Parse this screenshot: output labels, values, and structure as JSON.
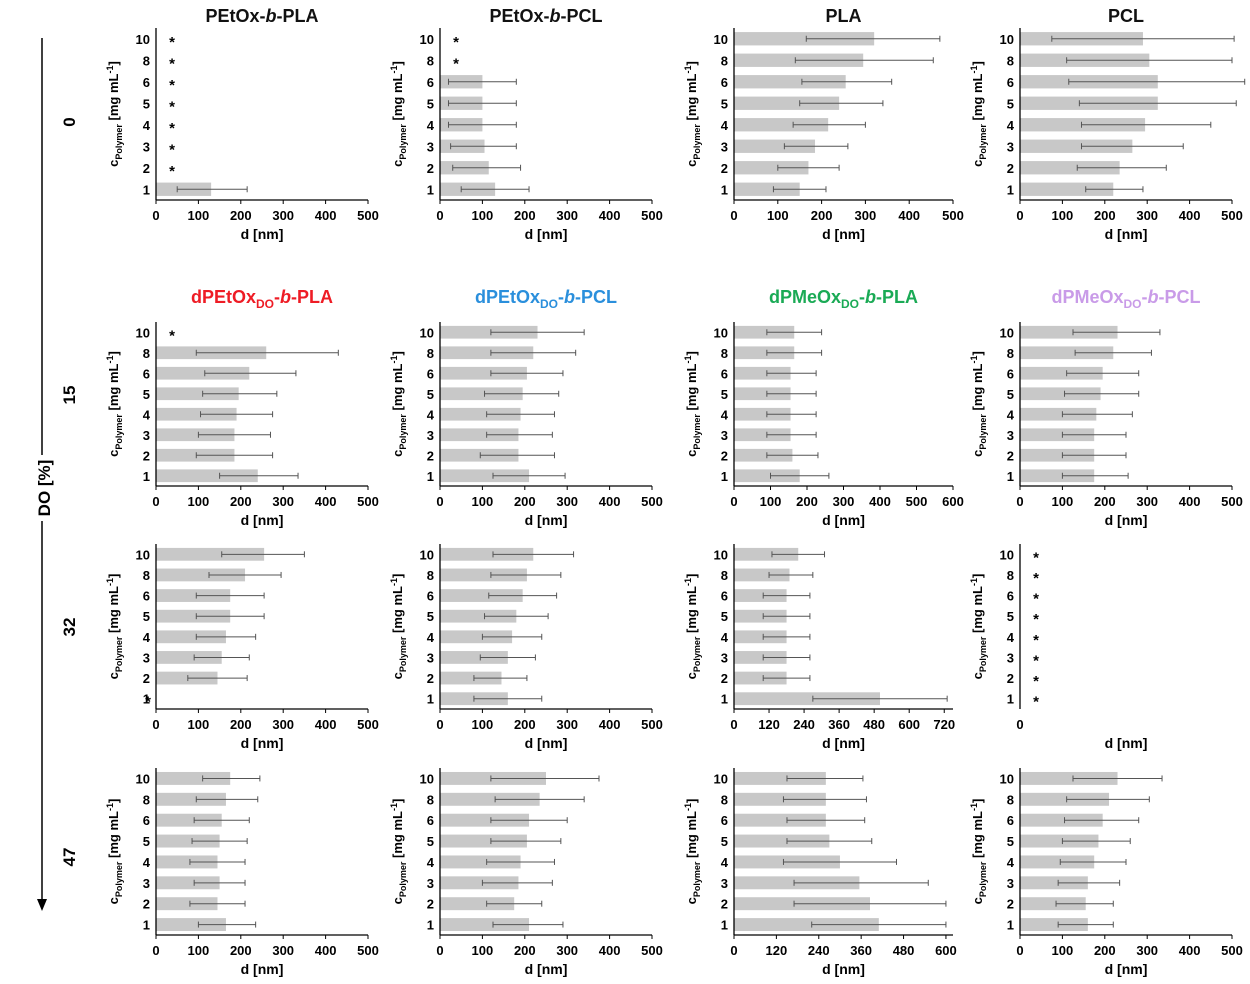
{
  "figure": {
    "yaxis_title": "DO [%]",
    "row_labels": [
      "0",
      "15",
      "32",
      "47"
    ],
    "group_titles": [
      {
        "base": "PEtOx-",
        "ital": "b",
        "tail": "-PLA",
        "sub": "",
        "color": "#111111"
      },
      {
        "base": "PEtOx-",
        "ital": "b",
        "tail": "-PCL",
        "sub": "",
        "color": "#111111"
      },
      {
        "base": "PLA",
        "ital": "",
        "tail": "",
        "sub": "",
        "color": "#111111"
      },
      {
        "base": "PCL",
        "ital": "",
        "tail": "",
        "sub": "",
        "color": "#111111"
      },
      {
        "base": "dPEtOx",
        "sub": "DO",
        "mid": "-",
        "ital": "b",
        "tail": "-PLA",
        "color": "#ee1c25"
      },
      {
        "base": "dPEtOx",
        "sub": "DO",
        "mid": "-",
        "ital": "b",
        "tail": "-PCL",
        "color": "#2a8fdc"
      },
      {
        "base": "dPMeOx",
        "sub": "DO",
        "mid": "-",
        "ital": "b",
        "tail": "-PLA",
        "color": "#1aaa55"
      },
      {
        "base": "dPMeOx",
        "sub": "DO",
        "mid": "-",
        "ital": "b",
        "tail": "-PCL",
        "color": "#c99be8"
      }
    ],
    "ylabel_main": "c",
    "ylabel_sub": "Polymer",
    "ylabel_unit": " [mg mL",
    "ylabel_sup": "-1",
    "ylabel_close": "]",
    "xlabel": "d [nm]",
    "asterisk": "*",
    "bar_color": "#c8c8c8"
  },
  "chart_data": [
    {
      "type": "bar",
      "orientation": "horizontal",
      "row": 0,
      "col": 0,
      "categories": [
        "1",
        "2",
        "3",
        "4",
        "5",
        "6",
        "8",
        "10"
      ],
      "values": [
        130,
        null,
        null,
        null,
        null,
        null,
        null,
        null
      ],
      "error_low": [
        50,
        null,
        null,
        null,
        null,
        null,
        null,
        null
      ],
      "error_high": [
        215,
        null,
        null,
        null,
        null,
        null,
        null,
        null
      ],
      "not_measured": [
        false,
        true,
        true,
        true,
        true,
        true,
        true,
        true
      ],
      "xlim": [
        0,
        500
      ],
      "xticks": [
        0,
        100,
        200,
        300,
        400,
        500
      ],
      "xlabel": "d [nm]"
    },
    {
      "type": "bar",
      "orientation": "horizontal",
      "row": 0,
      "col": 1,
      "categories": [
        "1",
        "2",
        "3",
        "4",
        "5",
        "6",
        "8",
        "10"
      ],
      "values": [
        130,
        115,
        105,
        100,
        100,
        100,
        null,
        null
      ],
      "error_low": [
        50,
        30,
        25,
        20,
        20,
        20,
        null,
        null
      ],
      "error_high": [
        210,
        190,
        180,
        180,
        180,
        180,
        null,
        null
      ],
      "not_measured": [
        false,
        false,
        false,
        false,
        false,
        false,
        true,
        true
      ],
      "xlim": [
        0,
        500
      ],
      "xticks": [
        0,
        100,
        200,
        300,
        400,
        500
      ],
      "xlabel": "d [nm]"
    },
    {
      "type": "bar",
      "orientation": "horizontal",
      "row": 0,
      "col": 2,
      "categories": [
        "1",
        "2",
        "3",
        "4",
        "5",
        "6",
        "8",
        "10"
      ],
      "values": [
        150,
        170,
        185,
        215,
        240,
        255,
        295,
        320
      ],
      "error_low": [
        90,
        100,
        115,
        135,
        150,
        155,
        140,
        165
      ],
      "error_high": [
        210,
        240,
        260,
        300,
        340,
        360,
        455,
        470
      ],
      "not_measured": [
        false,
        false,
        false,
        false,
        false,
        false,
        false,
        false
      ],
      "xlim": [
        0,
        500
      ],
      "xticks": [
        0,
        100,
        200,
        300,
        400,
        500
      ],
      "xlabel": "d [nm]"
    },
    {
      "type": "bar",
      "orientation": "horizontal",
      "row": 0,
      "col": 3,
      "categories": [
        "1",
        "2",
        "3",
        "4",
        "5",
        "6",
        "8",
        "10"
      ],
      "values": [
        220,
        235,
        265,
        295,
        325,
        325,
        305,
        290
      ],
      "error_low": [
        155,
        135,
        145,
        145,
        140,
        115,
        110,
        75
      ],
      "error_high": [
        290,
        345,
        385,
        450,
        510,
        530,
        500,
        505
      ],
      "not_measured": [
        false,
        false,
        false,
        false,
        false,
        false,
        false,
        false
      ],
      "xlim": [
        0,
        500
      ],
      "xticks": [
        0,
        100,
        200,
        300,
        400,
        500
      ],
      "xlabel": "d [nm]"
    },
    {
      "type": "bar",
      "orientation": "horizontal",
      "row": 1,
      "col": 0,
      "categories": [
        "1",
        "2",
        "3",
        "4",
        "5",
        "6",
        "8",
        "10"
      ],
      "values": [
        240,
        185,
        185,
        190,
        195,
        220,
        260,
        null
      ],
      "error_low": [
        150,
        95,
        100,
        105,
        110,
        115,
        95,
        null
      ],
      "error_high": [
        335,
        275,
        270,
        275,
        285,
        330,
        430,
        null
      ],
      "not_measured": [
        false,
        false,
        false,
        false,
        false,
        false,
        false,
        true
      ],
      "xlim": [
        0,
        500
      ],
      "xticks": [
        0,
        100,
        200,
        300,
        400,
        500
      ],
      "xlabel": "d [nm]"
    },
    {
      "type": "bar",
      "orientation": "horizontal",
      "row": 1,
      "col": 1,
      "categories": [
        "1",
        "2",
        "3",
        "4",
        "5",
        "6",
        "8",
        "10"
      ],
      "values": [
        210,
        185,
        185,
        190,
        195,
        205,
        220,
        230
      ],
      "error_low": [
        125,
        95,
        110,
        110,
        105,
        120,
        120,
        120
      ],
      "error_high": [
        295,
        270,
        265,
        270,
        280,
        290,
        320,
        340
      ],
      "not_measured": [
        false,
        false,
        false,
        false,
        false,
        false,
        false,
        false
      ],
      "xlim": [
        0,
        500
      ],
      "xticks": [
        0,
        100,
        200,
        300,
        400,
        500
      ],
      "xlabel": "d [nm]"
    },
    {
      "type": "bar",
      "orientation": "horizontal",
      "row": 1,
      "col": 2,
      "categories": [
        "1",
        "2",
        "3",
        "4",
        "5",
        "6",
        "8",
        "10"
      ],
      "values": [
        180,
        160,
        155,
        155,
        155,
        155,
        165,
        165
      ],
      "error_low": [
        100,
        90,
        90,
        90,
        90,
        90,
        90,
        90
      ],
      "error_high": [
        260,
        230,
        225,
        225,
        225,
        225,
        240,
        240
      ],
      "not_measured": [
        false,
        false,
        false,
        false,
        false,
        false,
        false,
        false
      ],
      "xlim": [
        0,
        600
      ],
      "xticks": [
        0,
        100,
        200,
        300,
        400,
        500,
        600
      ],
      "xlabel": "d [nm]"
    },
    {
      "type": "bar",
      "orientation": "horizontal",
      "row": 1,
      "col": 3,
      "categories": [
        "1",
        "2",
        "3",
        "4",
        "5",
        "6",
        "8",
        "10"
      ],
      "values": [
        175,
        175,
        175,
        180,
        190,
        195,
        220,
        230
      ],
      "error_low": [
        100,
        100,
        100,
        100,
        105,
        110,
        130,
        125
      ],
      "error_high": [
        255,
        250,
        250,
        265,
        280,
        280,
        310,
        330
      ],
      "not_measured": [
        false,
        false,
        false,
        false,
        false,
        false,
        false,
        false
      ],
      "xlim": [
        0,
        500
      ],
      "xticks": [
        0,
        100,
        200,
        300,
        400,
        500
      ],
      "xlabel": "d [nm]"
    },
    {
      "type": "bar",
      "orientation": "horizontal",
      "row": 2,
      "col": 0,
      "categories": [
        "1",
        "2",
        "3",
        "4",
        "5",
        "6",
        "8",
        "10"
      ],
      "values": [
        null,
        145,
        155,
        165,
        175,
        175,
        210,
        255
      ],
      "error_low": [
        null,
        75,
        90,
        95,
        95,
        95,
        125,
        155
      ],
      "error_high": [
        null,
        215,
        220,
        235,
        255,
        255,
        295,
        350
      ],
      "not_measured": [
        true,
        false,
        false,
        false,
        false,
        false,
        false,
        false
      ],
      "xlim": [
        0,
        500
      ],
      "xticks": [
        0,
        100,
        200,
        300,
        400,
        500
      ],
      "xlabel": "d [nm]"
    },
    {
      "type": "bar",
      "orientation": "horizontal",
      "row": 2,
      "col": 1,
      "categories": [
        "1",
        "2",
        "3",
        "4",
        "5",
        "6",
        "8",
        "10"
      ],
      "values": [
        160,
        145,
        160,
        170,
        180,
        195,
        205,
        220
      ],
      "error_low": [
        80,
        80,
        95,
        100,
        105,
        115,
        120,
        125
      ],
      "error_high": [
        240,
        205,
        225,
        240,
        255,
        275,
        285,
        315
      ],
      "not_measured": [
        false,
        false,
        false,
        false,
        false,
        false,
        false,
        false
      ],
      "xlim": [
        0,
        500
      ],
      "xticks": [
        0,
        100,
        200,
        300,
        400,
        500
      ],
      "xlabel": "d [nm]"
    },
    {
      "type": "bar",
      "orientation": "horizontal",
      "row": 2,
      "col": 2,
      "categories": [
        "1",
        "2",
        "3",
        "4",
        "5",
        "6",
        "8",
        "10"
      ],
      "values": [
        500,
        180,
        180,
        180,
        180,
        180,
        190,
        220
      ],
      "error_low": [
        270,
        100,
        100,
        100,
        100,
        100,
        120,
        130
      ],
      "error_high": [
        730,
        260,
        260,
        260,
        260,
        260,
        270,
        310
      ],
      "not_measured": [
        false,
        false,
        false,
        false,
        false,
        false,
        false,
        false
      ],
      "xlim": [
        0,
        750
      ],
      "xticks": [
        0,
        120,
        240,
        360,
        480,
        600,
        720
      ],
      "xlabel": "d [nm]"
    },
    {
      "type": "bar",
      "orientation": "horizontal",
      "row": 2,
      "col": 3,
      "categories": [
        "1",
        "2",
        "3",
        "4",
        "5",
        "6",
        "8",
        "10"
      ],
      "values": [
        null,
        null,
        null,
        null,
        null,
        null,
        null,
        null
      ],
      "error_low": [
        null,
        null,
        null,
        null,
        null,
        null,
        null,
        null
      ],
      "error_high": [
        null,
        null,
        null,
        null,
        null,
        null,
        null,
        null
      ],
      "not_measured": [
        true,
        true,
        true,
        true,
        true,
        true,
        true,
        true
      ],
      "xlim": [
        0,
        500
      ],
      "xticks": [
        0
      ],
      "xlabel": "d [nm]"
    },
    {
      "type": "bar",
      "orientation": "horizontal",
      "row": 3,
      "col": 0,
      "categories": [
        "1",
        "2",
        "3",
        "4",
        "5",
        "6",
        "8",
        "10"
      ],
      "values": [
        165,
        145,
        150,
        145,
        150,
        155,
        165,
        175
      ],
      "error_low": [
        100,
        80,
        90,
        80,
        85,
        90,
        95,
        110
      ],
      "error_high": [
        235,
        210,
        210,
        210,
        215,
        220,
        240,
        245
      ],
      "not_measured": [
        false,
        false,
        false,
        false,
        false,
        false,
        false,
        false
      ],
      "xlim": [
        0,
        500
      ],
      "xticks": [
        0,
        100,
        200,
        300,
        400,
        500
      ],
      "xlabel": "d [nm]"
    },
    {
      "type": "bar",
      "orientation": "horizontal",
      "row": 3,
      "col": 1,
      "categories": [
        "1",
        "2",
        "3",
        "4",
        "5",
        "6",
        "8",
        "10"
      ],
      "values": [
        210,
        175,
        185,
        190,
        205,
        210,
        235,
        250
      ],
      "error_low": [
        125,
        110,
        100,
        110,
        120,
        120,
        130,
        120
      ],
      "error_high": [
        290,
        240,
        265,
        270,
        285,
        300,
        340,
        375
      ],
      "not_measured": [
        false,
        false,
        false,
        false,
        false,
        false,
        false,
        false
      ],
      "xlim": [
        0,
        500
      ],
      "xticks": [
        0,
        100,
        200,
        300,
        400,
        500
      ],
      "xlabel": "d [nm]"
    },
    {
      "type": "bar",
      "orientation": "horizontal",
      "row": 3,
      "col": 2,
      "categories": [
        "1",
        "2",
        "3",
        "4",
        "5",
        "6",
        "8",
        "10"
      ],
      "values": [
        410,
        385,
        355,
        300,
        270,
        260,
        260,
        260
      ],
      "error_low": [
        220,
        170,
        170,
        140,
        150,
        150,
        140,
        150
      ],
      "error_high": [
        600,
        600,
        550,
        460,
        390,
        370,
        375,
        365
      ],
      "not_measured": [
        false,
        false,
        false,
        false,
        false,
        false,
        false,
        false
      ],
      "xlim": [
        0,
        620
      ],
      "xticks": [
        0,
        120,
        240,
        360,
        480,
        600
      ],
      "xlabel": "d [nm]"
    },
    {
      "type": "bar",
      "orientation": "horizontal",
      "row": 3,
      "col": 3,
      "categories": [
        "1",
        "2",
        "3",
        "4",
        "5",
        "6",
        "8",
        "10"
      ],
      "values": [
        160,
        155,
        160,
        175,
        185,
        195,
        210,
        230
      ],
      "error_low": [
        90,
        85,
        90,
        95,
        100,
        105,
        110,
        125
      ],
      "error_high": [
        220,
        220,
        235,
        250,
        260,
        280,
        305,
        335
      ],
      "not_measured": [
        false,
        false,
        false,
        false,
        false,
        false,
        false,
        false
      ],
      "xlim": [
        0,
        500
      ],
      "xticks": [
        0,
        100,
        200,
        300,
        400,
        500
      ],
      "xlabel": "d [nm]"
    }
  ]
}
